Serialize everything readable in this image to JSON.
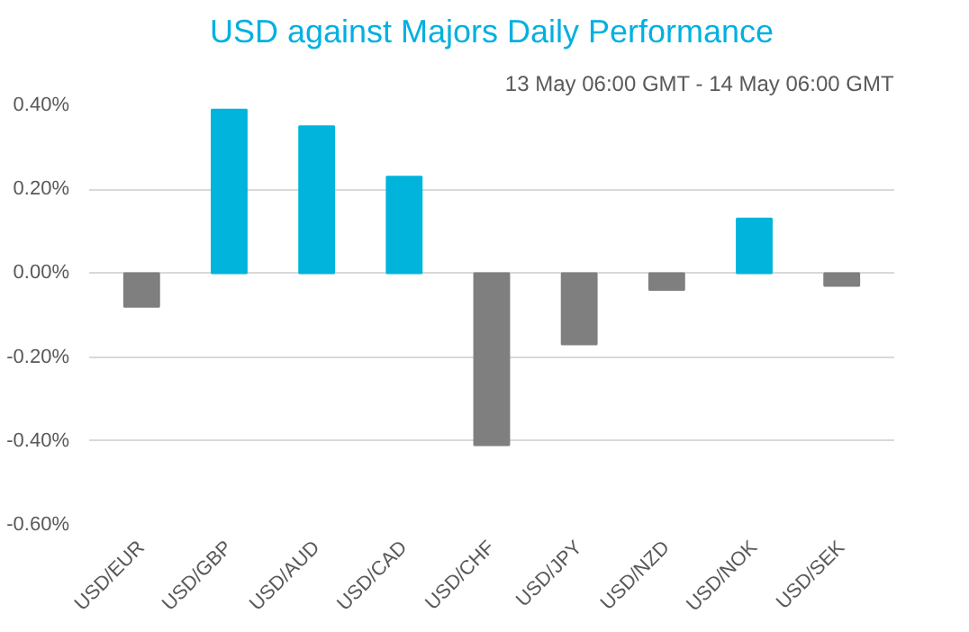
{
  "chart_data": {
    "type": "bar",
    "title": "USD against Majors Daily Performance",
    "subtitle": "13 May 06:00 GMT - 14 May 06:00 GMT",
    "categories": [
      "USD/EUR",
      "USD/GBP",
      "USD/AUD",
      "USD/CAD",
      "USD/CHF",
      "USD/JPY",
      "USD/NZD",
      "USD/NOK",
      "USD/SEK"
    ],
    "values": [
      -0.08,
      0.39,
      0.35,
      0.23,
      -0.41,
      -0.17,
      -0.04,
      0.13,
      -0.03
    ],
    "colors": [
      "#7f7f7f",
      "#00b4dc",
      "#00b4dc",
      "#00b4dc",
      "#7f7f7f",
      "#7f7f7f",
      "#7f7f7f",
      "#00b4dc",
      "#7f7f7f"
    ],
    "ylim": [
      -0.6,
      0.4
    ],
    "yticks": [
      {
        "value": -0.6,
        "label": "-0.60%"
      },
      {
        "value": -0.4,
        "label": "-0.40%"
      },
      {
        "value": -0.2,
        "label": "-0.20%"
      },
      {
        "value": 0.0,
        "label": "0.00%"
      },
      {
        "value": 0.2,
        "label": "0.20%"
      },
      {
        "value": 0.4,
        "label": "0.40%"
      }
    ],
    "grid": "y"
  }
}
